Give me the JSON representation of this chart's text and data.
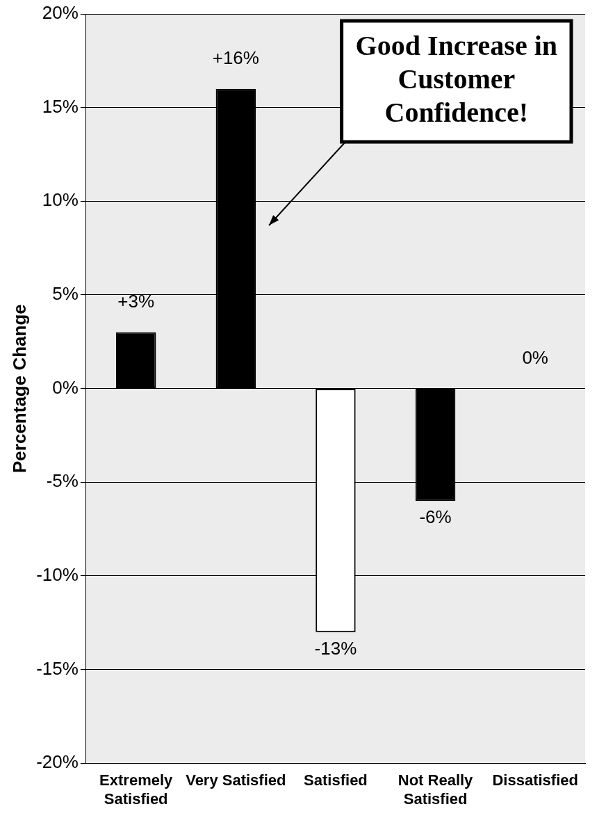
{
  "chart_data": {
    "type": "bar",
    "ylabel": "Percentage Change",
    "categories": [
      [
        "Extremely",
        "Satisfied"
      ],
      "Very Satisfied",
      "Satisfied",
      [
        "Not Really",
        "Satisfied"
      ],
      "Dissatisfied"
    ],
    "values": [
      3,
      16,
      -13,
      -6,
      0
    ],
    "colors": [
      "#000000",
      "#000000",
      "#ffffff",
      "#000000",
      "#000000"
    ],
    "value_labels": [
      "+3%",
      "+16%",
      "-13%",
      "-6%",
      "0%"
    ],
    "ylim": [
      -20,
      20
    ],
    "yticks": [
      {
        "value": -20,
        "label": "-20%"
      },
      {
        "value": -15,
        "label": "-15%"
      },
      {
        "value": -10,
        "label": "-10%"
      },
      {
        "value": -5,
        "label": "-5%"
      },
      {
        "value": 0,
        "label": "0%"
      },
      {
        "value": 5,
        "label": "5%"
      },
      {
        "value": 10,
        "label": "10%"
      },
      {
        "value": 15,
        "label": "15%"
      },
      {
        "value": 20,
        "label": "20%"
      }
    ],
    "grid": "y",
    "legend": false,
    "annotations": [
      "Good Increase in Customer Confidence!"
    ]
  }
}
